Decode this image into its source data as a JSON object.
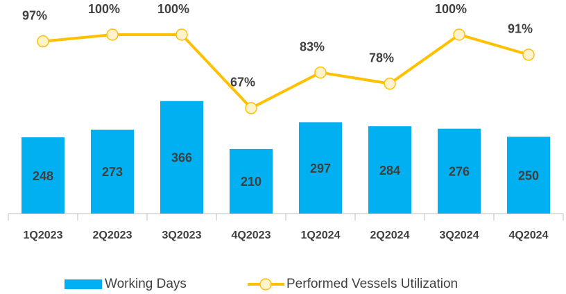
{
  "chart_data": {
    "type": "bar_line",
    "categories": [
      "1Q2023",
      "2Q2023",
      "3Q2023",
      "4Q2023",
      "1Q2024",
      "2Q2024",
      "3Q2024",
      "4Q2024"
    ],
    "series": [
      {
        "name": "Working Days",
        "type": "bar",
        "color": "#00b0f0",
        "values": [
          248,
          273,
          366,
          210,
          297,
          284,
          276,
          250
        ]
      },
      {
        "name": "Performed Vessels Utilization",
        "type": "line",
        "axis": "y2",
        "color": "#ffc000",
        "marker_fill": "#fff2cc",
        "values": [
          97,
          100,
          100,
          67,
          83,
          78,
          100,
          91
        ],
        "value_labels": [
          "97%",
          "100%",
          "100%",
          "67%",
          "83%",
          "78%",
          "100%",
          "91%"
        ]
      }
    ],
    "ylim": [
      0,
      600
    ],
    "y2lim": [
      0,
      100
    ],
    "legend": "bottom"
  }
}
